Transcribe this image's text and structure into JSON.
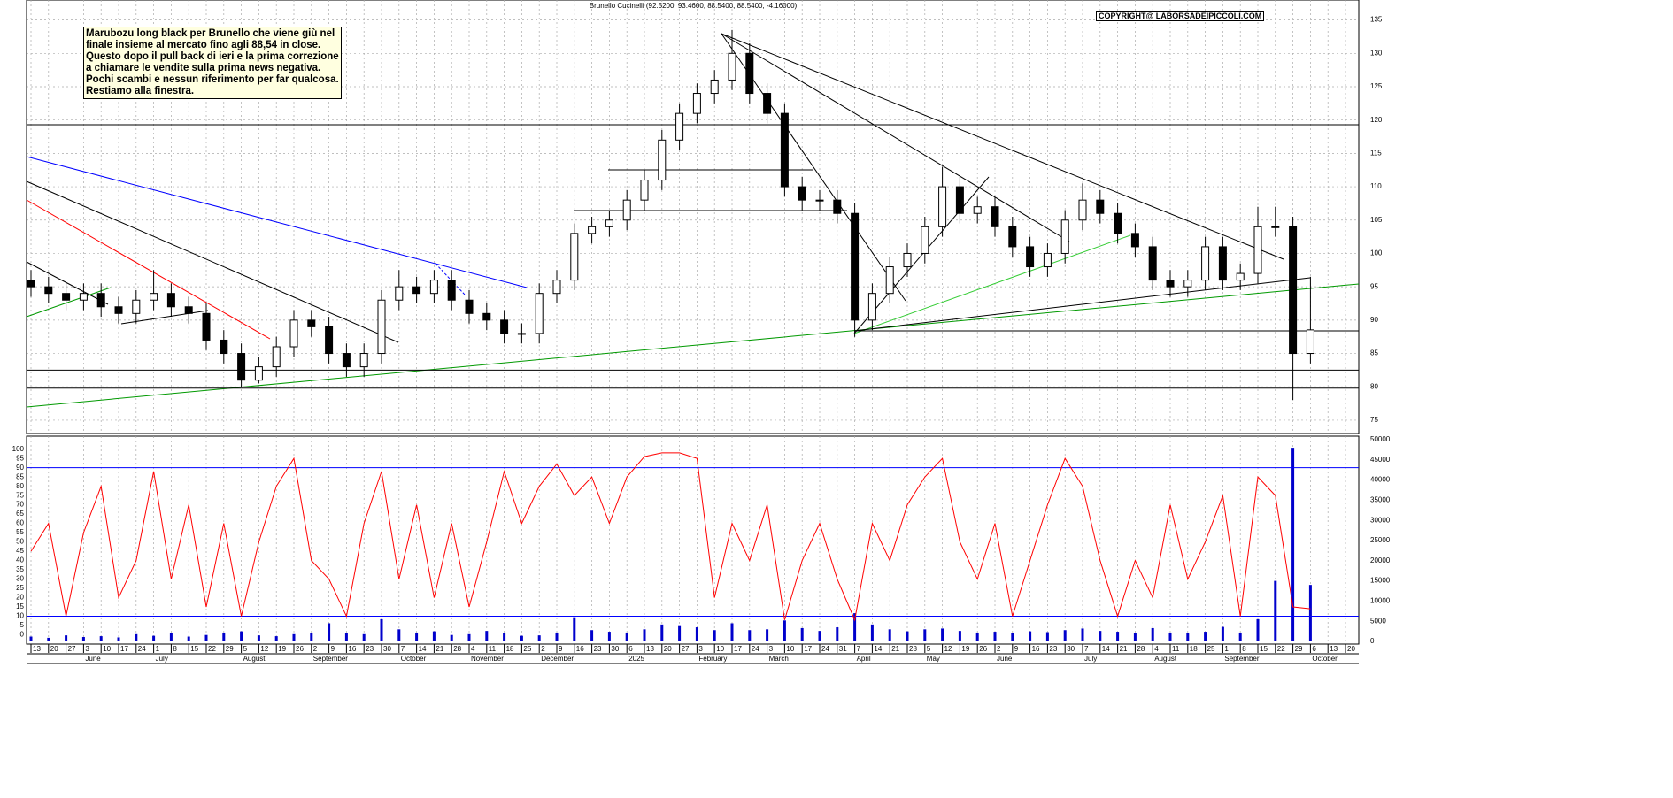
{
  "chart_data": {
    "type": "candlestick",
    "title": "Brunello Cucinelli (92.5200, 93.4600, 88.5400, 88.5400, -4.16000)",
    "copyright": "COPYRIGHT@ LABORSADEIPICCOLI.COM",
    "annotation": [
      "Marubozu long black per Brunello che viene giù nel",
      "finale insieme al mercato fino agli 88,54 in close.",
      "Questo dopo il pull back di ieri e la prima correzione",
      "a chiamare le vendite sulla prima news negativa.",
      "Pochi scambi  e nessun riferimento per far qualcosa.",
      "Restiamo alla finestra."
    ],
    "categories": [
      "13",
      "20",
      "27",
      "3",
      "10",
      "17",
      "24",
      "1",
      "8",
      "15",
      "22",
      "29",
      "5",
      "12",
      "19",
      "26",
      "2",
      "9",
      "16",
      "23",
      "30",
      "7",
      "14",
      "21",
      "28",
      "4",
      "11",
      "18",
      "25",
      "2",
      "9",
      "16",
      "23",
      "30",
      "6",
      "13",
      "20",
      "27",
      "3",
      "10",
      "17",
      "24",
      "3",
      "10",
      "17",
      "24",
      "31",
      "7",
      "14",
      "21",
      "28",
      "5",
      "12",
      "19",
      "26",
      "2",
      "9",
      "16",
      "23",
      "30",
      "7",
      "14",
      "21",
      "28",
      "4",
      "11",
      "18",
      "25",
      "1",
      "8",
      "15",
      "22",
      "29",
      "6",
      "13",
      "20"
    ],
    "month_labels": [
      null,
      null,
      null,
      "June",
      null,
      null,
      null,
      "July",
      null,
      null,
      null,
      null,
      "August",
      null,
      null,
      null,
      "September",
      null,
      null,
      null,
      null,
      "October",
      null,
      null,
      null,
      "November",
      null,
      null,
      null,
      "December",
      null,
      null,
      null,
      null,
      "2025",
      null,
      null,
      null,
      "February",
      null,
      null,
      null,
      "March",
      null,
      null,
      null,
      null,
      "April",
      null,
      null,
      null,
      "May",
      null,
      null,
      null,
      "June",
      null,
      null,
      null,
      null,
      "July",
      null,
      null,
      null,
      "August",
      null,
      null,
      null,
      "September",
      null,
      null,
      null,
      null,
      "October",
      null,
      null
    ],
    "open": [
      96,
      95,
      94,
      93,
      94,
      92,
      91,
      93,
      94,
      92,
      91,
      87,
      85,
      81,
      83,
      86,
      90,
      89,
      85,
      83,
      85,
      93,
      95,
      94,
      96,
      93,
      91,
      90,
      88,
      88,
      94,
      96,
      103,
      104,
      105,
      108,
      111,
      117,
      121,
      124,
      126,
      130,
      124,
      121,
      110,
      108,
      108,
      106,
      90,
      94,
      98,
      100,
      104,
      110,
      106,
      107,
      104,
      101,
      98,
      100,
      105,
      108,
      106,
      103,
      101,
      96,
      95,
      96,
      101,
      96,
      97,
      104,
      104,
      85,
      null,
      null
    ],
    "high": [
      97.5,
      96.5,
      95.5,
      95.5,
      95.5,
      93.5,
      94.5,
      97.5,
      95.5,
      93.5,
      92.5,
      88.5,
      86.5,
      84.5,
      87.5,
      91.5,
      91.5,
      90.5,
      86.5,
      86.5,
      94.5,
      97.5,
      96.5,
      97.5,
      97.5,
      94.5,
      92.5,
      91.5,
      89.5,
      95.5,
      97.5,
      104.5,
      105.5,
      106.5,
      109.5,
      112.5,
      118.5,
      122.5,
      125.5,
      127.5,
      133.5,
      131.5,
      125.5,
      122.5,
      111.5,
      109.5,
      109.5,
      107.5,
      95.5,
      99.5,
      101.5,
      105.5,
      113,
      111.5,
      108.5,
      108.5,
      105.5,
      102.5,
      101.5,
      106.5,
      110.5,
      109.5,
      107.5,
      104.5,
      102.5,
      97.5,
      97.5,
      102.5,
      102.5,
      98.5,
      107,
      107,
      105.5,
      96.5,
      null,
      null
    ],
    "low": [
      93.5,
      92.5,
      91.5,
      91.5,
      90.5,
      89.5,
      89.5,
      91.5,
      90.5,
      89.5,
      85.5,
      83.5,
      80,
      80.5,
      81.5,
      84.5,
      87.5,
      83.5,
      81.5,
      81.5,
      83.5,
      91.5,
      92.5,
      92.5,
      91.5,
      89.5,
      88.5,
      86.5,
      86.5,
      86.5,
      92.5,
      94.5,
      101.5,
      102.5,
      103.5,
      106.5,
      109.5,
      115.5,
      119.5,
      122.5,
      124.5,
      122.5,
      119.5,
      108.5,
      106.5,
      106.5,
      104.5,
      87.5,
      88.5,
      92.5,
      96.5,
      98.5,
      102.5,
      104.5,
      104.5,
      102.5,
      99.5,
      96.5,
      96.5,
      98.5,
      103.5,
      104.5,
      101.5,
      99.5,
      94.5,
      93.5,
      93.5,
      94.5,
      94.5,
      94.5,
      95.5,
      102.5,
      78,
      83.5,
      null,
      null
    ],
    "close": [
      95,
      94,
      93,
      94,
      92,
      91,
      93,
      94,
      92,
      91,
      87,
      85,
      81,
      83,
      86,
      90,
      89,
      85,
      83,
      85,
      93,
      95,
      94,
      96,
      93,
      91,
      90,
      88,
      88,
      94,
      96,
      103,
      104,
      105,
      108,
      111,
      117,
      121,
      124,
      126,
      130,
      124,
      121,
      110,
      108,
      108,
      106,
      90,
      94,
      98,
      100,
      104,
      110,
      106,
      107,
      104,
      101,
      98,
      100,
      105,
      108,
      106,
      103,
      101,
      96,
      95,
      96,
      101,
      96,
      97,
      104,
      104,
      85,
      88.54,
      null,
      null
    ],
    "ylim": [
      73,
      138
    ],
    "yticks": [
      75,
      80,
      85,
      90,
      95,
      100,
      105,
      110,
      115,
      120,
      125,
      130,
      135
    ],
    "levels": [
      119.3,
      82.5,
      79.8
    ],
    "up_color": "#ffffff",
    "down_color": "#000000",
    "oscillator": {
      "type": "line",
      "color": "#ff0000",
      "values": [
        45,
        60,
        10,
        55,
        80,
        20,
        40,
        88,
        30,
        70,
        15,
        60,
        10,
        50,
        80,
        95,
        40,
        30,
        10,
        60,
        88,
        30,
        70,
        20,
        60,
        15,
        50,
        88,
        60,
        80,
        92,
        75,
        85,
        60,
        85,
        96,
        98,
        98,
        95,
        20,
        60,
        40,
        70,
        8,
        40,
        60,
        30,
        8,
        60,
        40,
        70,
        85,
        95,
        50,
        30,
        60,
        10,
        40,
        70,
        95,
        80,
        40,
        10,
        40,
        20,
        70,
        30,
        50,
        75,
        10,
        85,
        75,
        15,
        14,
        null,
        null
      ],
      "ylim": [
        -5,
        107
      ],
      "yticks": [
        0,
        5,
        10,
        15,
        20,
        25,
        30,
        35,
        40,
        45,
        50,
        55,
        60,
        65,
        70,
        75,
        80,
        85,
        90,
        95,
        100
      ],
      "levels": [
        10,
        90
      ],
      "level_color": "#0000ff"
    },
    "volume": {
      "type": "bar",
      "color": "#0000cc",
      "values": [
        1200,
        900,
        1500,
        1100,
        1300,
        1000,
        1800,
        1400,
        2000,
        1200,
        1600,
        2200,
        2500,
        1500,
        1300,
        1800,
        2100,
        4500,
        2000,
        1800,
        5500,
        3000,
        2200,
        2500,
        1600,
        1800,
        2600,
        2000,
        1400,
        1500,
        2200,
        6000,
        2800,
        2400,
        2200,
        3000,
        4200,
        3800,
        3500,
        2800,
        4500,
        2800,
        3000,
        5200,
        3300,
        2600,
        3500,
        7000,
        4200,
        3000,
        2500,
        3000,
        3200,
        2600,
        2200,
        2400,
        2000,
        2500,
        2300,
        2800,
        3200,
        2600,
        2400,
        2000,
        3300,
        2200,
        2000,
        2400,
        3600,
        2200,
        5500,
        15000,
        48000,
        14000,
        null,
        null
      ],
      "ylim": [
        0,
        50000
      ],
      "yticks": [
        0,
        5000,
        10000,
        15000,
        20000,
        25000,
        30000,
        35000,
        40000,
        45000,
        50000
      ]
    }
  }
}
